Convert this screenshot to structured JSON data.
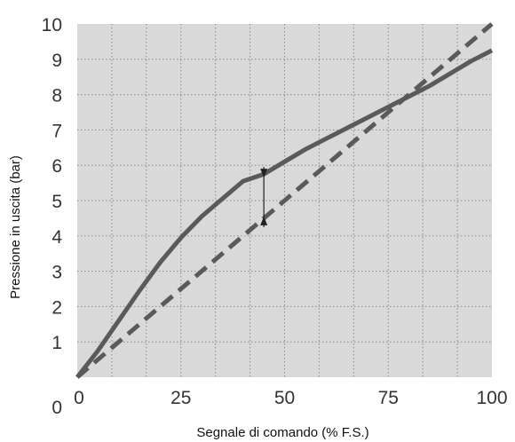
{
  "chart_data": {
    "type": "line",
    "title": "",
    "xlabel": "Segnale di comando (% F.S.)",
    "ylabel": "Pressione in uscita (bar)",
    "xlim": [
      0,
      100
    ],
    "ylim": [
      0,
      10
    ],
    "x_ticks": [
      "0",
      "25",
      "50",
      "75",
      "100"
    ],
    "y_ticks": [
      "0",
      "1",
      "2",
      "3",
      "4",
      "5",
      "6",
      "7",
      "8",
      "9",
      "10"
    ],
    "grid": true,
    "minor_grid_step_x": 8.333,
    "background_color": "#d9d9d9",
    "series": [
      {
        "style": "solid",
        "color": "#5a5a5a",
        "x": [
          0,
          5,
          10,
          15,
          20,
          25,
          30,
          35,
          40,
          45,
          50,
          55,
          60,
          65,
          70,
          75,
          80,
          85,
          90,
          95,
          100
        ],
        "y": [
          0,
          0.75,
          1.6,
          2.45,
          3.25,
          3.95,
          4.55,
          5.05,
          5.55,
          5.75,
          6.1,
          6.45,
          6.75,
          7.05,
          7.35,
          7.65,
          7.95,
          8.25,
          8.6,
          8.95,
          9.25
        ]
      },
      {
        "style": "dashed",
        "color": "#5a5a5a",
        "x": [
          0,
          100
        ],
        "y": [
          0,
          10
        ]
      }
    ],
    "annotations": [
      {
        "type": "deviation-arrow",
        "x": 45,
        "y_top": 5.75,
        "y_bottom": 4.5
      }
    ]
  }
}
